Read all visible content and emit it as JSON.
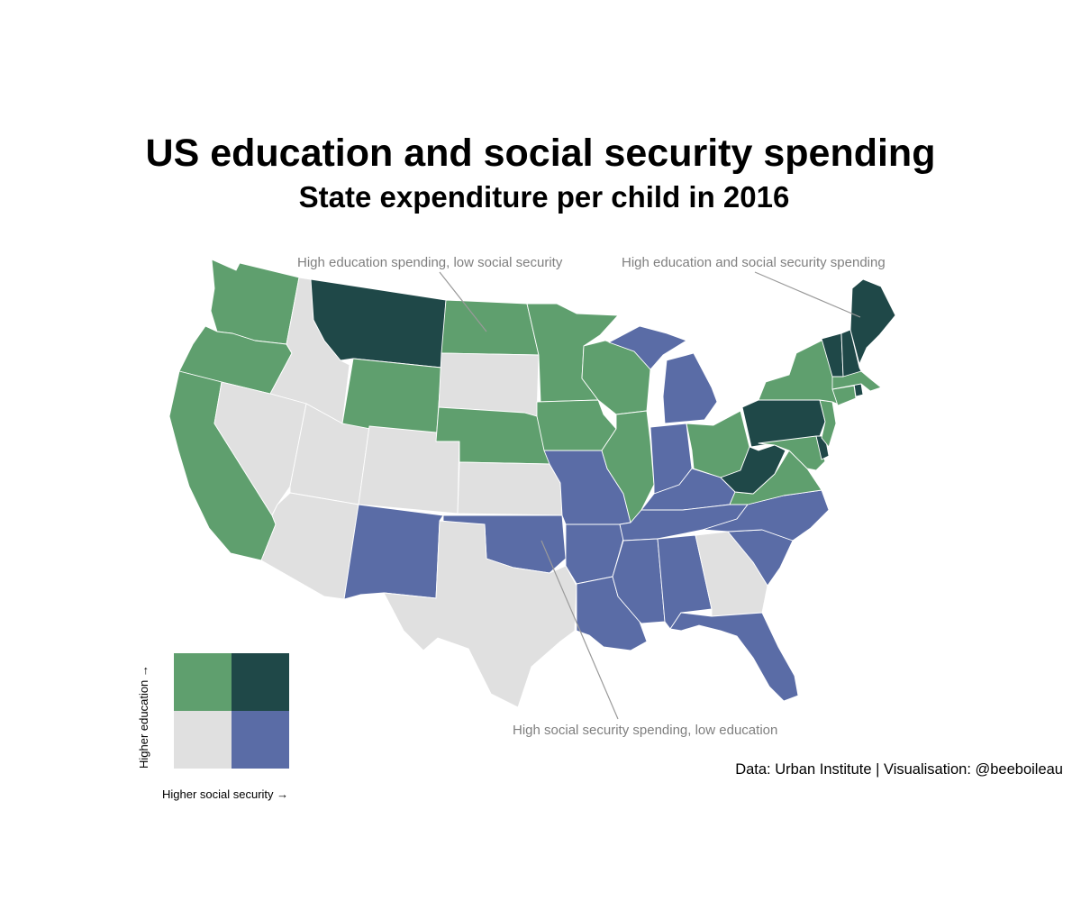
{
  "title": "US education and social security spending",
  "subtitle": "State expenditure per child in 2016",
  "caption": "Data: Urban Institute | Visualisation: @beeboileau",
  "annotations": {
    "high_edu_low_ss": "High education spending, low social security",
    "high_both": "High education and social security spending",
    "high_ss_low_edu": "High social security spending, low education"
  },
  "legend": {
    "y_label": "Higher education →",
    "x_label": "Higher social security →"
  },
  "colors": {
    "high_edu_low_ss": "#5f9f6e",
    "high_both": "#1f4848",
    "low_both": "#e0e0e0",
    "high_ss_low_edu": "#5a6ca6"
  },
  "states": {
    "WA": "high_edu_low_ss",
    "OR": "high_edu_low_ss",
    "CA": "high_edu_low_ss",
    "ID": "low_both",
    "NV": "low_both",
    "UT": "low_both",
    "AZ": "low_both",
    "MT": "high_both",
    "WY": "high_edu_low_ss",
    "CO": "low_both",
    "NM": "high_ss_low_edu",
    "ND": "high_edu_low_ss",
    "SD": "low_both",
    "NE": "high_edu_low_ss",
    "KS": "low_both",
    "OK": "high_ss_low_edu",
    "TX": "low_both",
    "MN": "high_edu_low_ss",
    "IA": "high_edu_low_ss",
    "MO": "high_ss_low_edu",
    "AR": "high_ss_low_edu",
    "LA": "high_ss_low_edu",
    "WI": "high_edu_low_ss",
    "IL": "high_edu_low_ss",
    "MI": "high_ss_low_edu",
    "IN": "high_ss_low_edu",
    "OH": "high_edu_low_ss",
    "KY": "high_ss_low_edu",
    "TN": "high_ss_low_edu",
    "MS": "high_ss_low_edu",
    "AL": "high_ss_low_edu",
    "GA": "low_both",
    "FL": "high_ss_low_edu",
    "SC": "high_ss_low_edu",
    "NC": "high_ss_low_edu",
    "VA": "high_edu_low_ss",
    "WV": "high_both",
    "PA": "high_both",
    "NY": "high_edu_low_ss",
    "NJ": "high_edu_low_ss",
    "DE": "high_both",
    "MD": "high_edu_low_ss",
    "CT": "high_edu_low_ss",
    "RI": "high_both",
    "MA": "high_edu_low_ss",
    "VT": "high_both",
    "NH": "high_both",
    "ME": "high_both"
  }
}
